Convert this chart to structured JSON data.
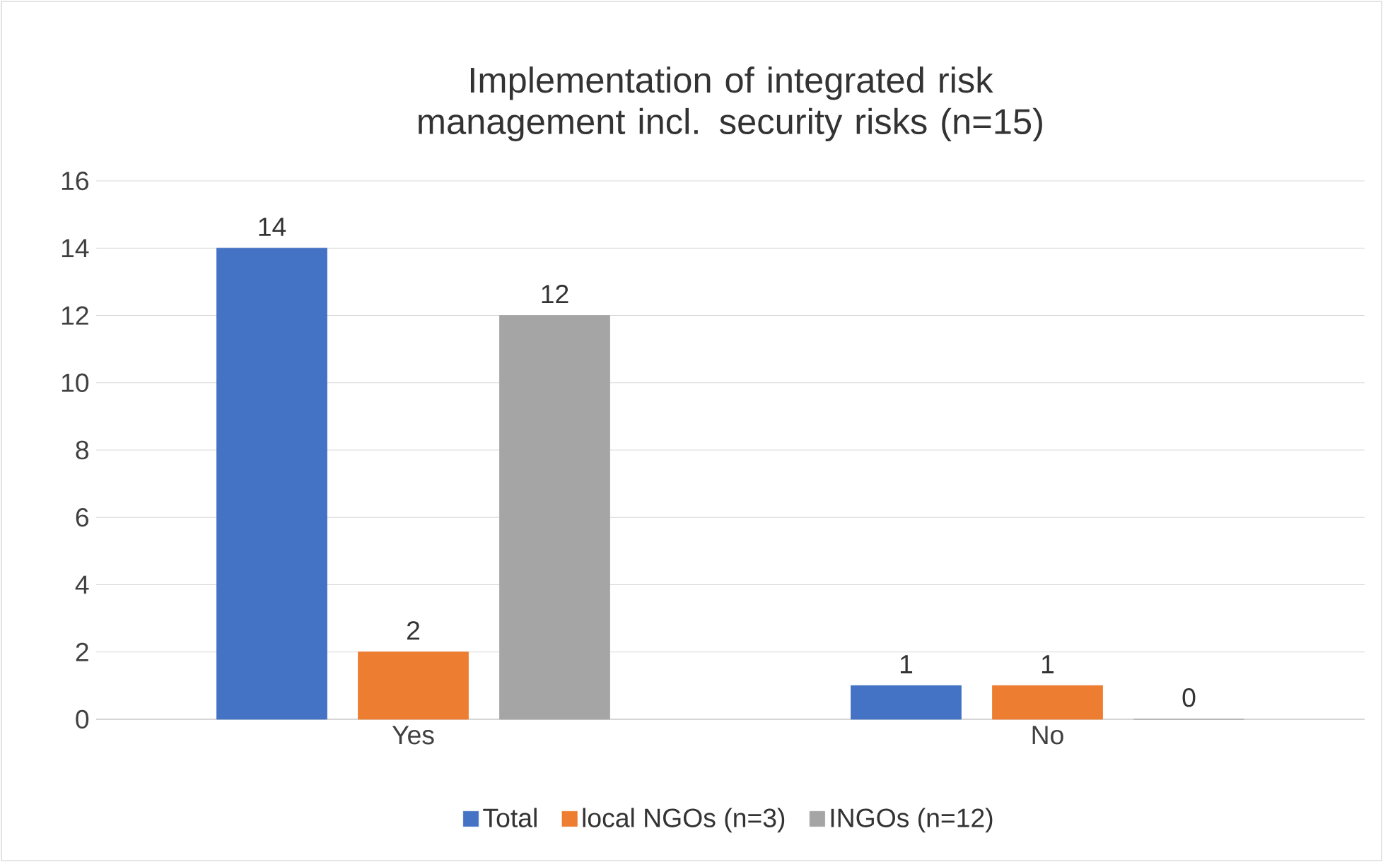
{
  "chart_data": {
    "type": "bar",
    "title": "Implementation of integrated risk management incl. security risks (n=15)",
    "categories": [
      "Yes",
      "No"
    ],
    "series": [
      {
        "name": "Total",
        "color": "#4472c4",
        "values": [
          14,
          1
        ]
      },
      {
        "name": "local NGOs (n=3)",
        "color": "#ed7d31",
        "values": [
          2,
          1
        ]
      },
      {
        "name": "INGOs (n=12)",
        "color": "#a5a5a5",
        "values": [
          12,
          0
        ]
      }
    ],
    "ylim": [
      0,
      16
    ],
    "yticks": [
      0,
      2,
      4,
      6,
      8,
      10,
      12,
      14,
      16
    ],
    "grid": "y",
    "legend": "bottom",
    "data_labels": true
  }
}
